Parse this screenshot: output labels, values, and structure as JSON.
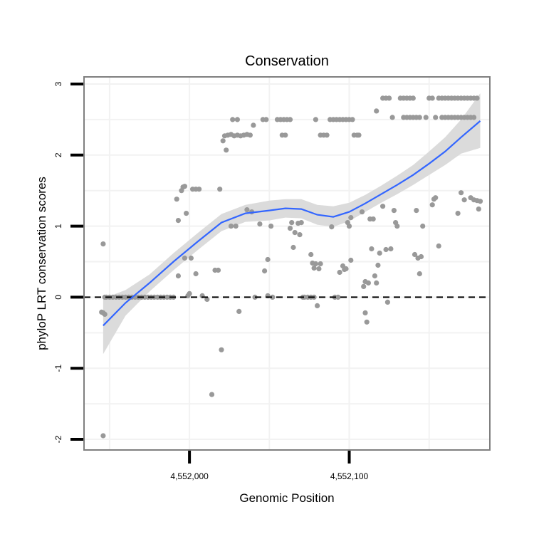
{
  "chart_data": {
    "type": "scatter",
    "title": "Conservation",
    "xlabel": "Genomic Position",
    "ylabel": "phyloP LRT conservation scores",
    "xlim": [
      4551934,
      4552188
    ],
    "ylim": [
      -2.15,
      3.1
    ],
    "x_ticks": [
      {
        "value": 4552000,
        "label": "4,552,000"
      },
      {
        "value": 4552100,
        "label": "4,552,100"
      }
    ],
    "y_ticks": [
      {
        "value": -2,
        "label": "-2"
      },
      {
        "value": -1,
        "label": "-1"
      },
      {
        "value": 0,
        "label": "0"
      },
      {
        "value": 1,
        "label": "1"
      },
      {
        "value": 2,
        "label": "2"
      },
      {
        "value": 3,
        "label": "3"
      }
    ],
    "grid": true,
    "reference_line": {
      "y": 0,
      "style": "dashed",
      "color": "#000000"
    },
    "colors": {
      "points": "#999999",
      "smooth_line": "#3366ff",
      "confidence_band": "#d9d9d9",
      "panel_border": "#7f7f7f",
      "grid": "#f2f2f2"
    },
    "points": [
      [
        4551946,
        -1.95
      ],
      [
        4551946,
        0.75
      ],
      [
        4551946,
        -0.22
      ],
      [
        4551947,
        -0.24
      ],
      [
        4551945,
        -0.21
      ],
      [
        4551947,
        0.0
      ],
      [
        4551948,
        0.0
      ],
      [
        4551950,
        0.0
      ],
      [
        4551952,
        0.0
      ],
      [
        4551954,
        0.0
      ],
      [
        4551956,
        0.0
      ],
      [
        4551958,
        0.0
      ],
      [
        4551960,
        0.0
      ],
      [
        4551962,
        0.0
      ],
      [
        4551964,
        0.0
      ],
      [
        4551966,
        0.0
      ],
      [
        4551968,
        0.0
      ],
      [
        4551970,
        0.0
      ],
      [
        4551972,
        0.0
      ],
      [
        4551974,
        0.0
      ],
      [
        4551976,
        0.0
      ],
      [
        4551978,
        0.0
      ],
      [
        4551980,
        0.0
      ],
      [
        4551982,
        0.0
      ],
      [
        4551984,
        0.0
      ],
      [
        4551986,
        0.0
      ],
      [
        4551988,
        0.0
      ],
      [
        4551990,
        0.0
      ],
      [
        4551992,
        1.38
      ],
      [
        4551993,
        1.08
      ],
      [
        4551993,
        0.3
      ],
      [
        4551995,
        1.5
      ],
      [
        4551996,
        1.55
      ],
      [
        4551997,
        1.56
      ],
      [
        4551997,
        0.55
      ],
      [
        4551998,
        1.18
      ],
      [
        4551999,
        0.02
      ],
      [
        4552000,
        0.05
      ],
      [
        4552001,
        0.55
      ],
      [
        4552002,
        1.52
      ],
      [
        4552004,
        1.52
      ],
      [
        4552006,
        1.52
      ],
      [
        4552004,
        0.33
      ],
      [
        4552008,
        0.02
      ],
      [
        4552011,
        -0.03
      ],
      [
        4552014,
        -1.37
      ],
      [
        4552016,
        0.38
      ],
      [
        4552018,
        0.38
      ],
      [
        4552019,
        1.52
      ],
      [
        4552020,
        -0.74
      ],
      [
        4552021,
        2.2
      ],
      [
        4552022,
        2.27
      ],
      [
        4552023,
        2.07
      ],
      [
        4552024,
        2.28
      ],
      [
        4552026,
        2.29
      ],
      [
        4552028,
        2.27
      ],
      [
        4552030,
        2.28
      ],
      [
        4552032,
        2.27
      ],
      [
        4552034,
        2.28
      ],
      [
        4552036,
        2.29
      ],
      [
        4552038,
        2.28
      ],
      [
        4552027,
        2.5
      ],
      [
        4552030,
        2.5
      ],
      [
        4552026,
        1.0
      ],
      [
        4552029,
        1.0
      ],
      [
        4552031,
        -0.2
      ],
      [
        4552036,
        1.23
      ],
      [
        4552039,
        1.2
      ],
      [
        4552040,
        2.42
      ],
      [
        4552041,
        0.0
      ],
      [
        4552044,
        1.03
      ],
      [
        4552046,
        2.5
      ],
      [
        4552048,
        2.5
      ],
      [
        4552047,
        0.37
      ],
      [
        4552049,
        0.53
      ],
      [
        4552049,
        0.02
      ],
      [
        4552051,
        1.0
      ],
      [
        4552052,
        0.0
      ],
      [
        4552055,
        2.5
      ],
      [
        4552057,
        2.5
      ],
      [
        4552059,
        2.5
      ],
      [
        4552061,
        2.5
      ],
      [
        4552063,
        2.5
      ],
      [
        4552058,
        2.28
      ],
      [
        4552060,
        2.28
      ],
      [
        4552063,
        0.97
      ],
      [
        4552064,
        1.05
      ],
      [
        4552065,
        0.7
      ],
      [
        4552066,
        0.91
      ],
      [
        4552068,
        1.04
      ],
      [
        4552069,
        0.88
      ],
      [
        4552070,
        1.05
      ],
      [
        4552071,
        0.0
      ],
      [
        4552072,
        0.0
      ],
      [
        4552074,
        0.0
      ],
      [
        4552076,
        0.0
      ],
      [
        4552078,
        0.0
      ],
      [
        4552076,
        0.6
      ],
      [
        4552077,
        0.48
      ],
      [
        4552078,
        0.41
      ],
      [
        4552079,
        0.47
      ],
      [
        4552080,
        -0.12
      ],
      [
        4552081,
        0.4
      ],
      [
        4552082,
        0.47
      ],
      [
        4552079,
        2.5
      ],
      [
        4552082,
        2.28
      ],
      [
        4552084,
        2.28
      ],
      [
        4552086,
        2.28
      ],
      [
        4552088,
        2.5
      ],
      [
        4552090,
        2.5
      ],
      [
        4552092,
        2.5
      ],
      [
        4552094,
        2.5
      ],
      [
        4552096,
        2.5
      ],
      [
        4552098,
        2.5
      ],
      [
        4552100,
        2.5
      ],
      [
        4552089,
        0.99
      ],
      [
        4552091,
        0.0
      ],
      [
        4552093,
        0.0
      ],
      [
        4552094,
        0.35
      ],
      [
        4552096,
        0.44
      ],
      [
        4552097,
        0.39
      ],
      [
        4552098,
        0.4
      ],
      [
        4552099,
        1.05
      ],
      [
        4552100,
        1.0
      ],
      [
        4552101,
        1.12
      ],
      [
        4552101,
        0.52
      ],
      [
        4552102,
        2.5
      ],
      [
        4552103,
        2.28
      ],
      [
        4552105,
        2.28
      ],
      [
        4552106,
        2.28
      ],
      [
        4552108,
        1.2
      ],
      [
        4552109,
        0.15
      ],
      [
        4552110,
        -0.22
      ],
      [
        4552110,
        0.22
      ],
      [
        4552111,
        -0.35
      ],
      [
        4552112,
        0.2
      ],
      [
        4552113,
        1.1
      ],
      [
        4552114,
        0.68
      ],
      [
        4552115,
        1.1
      ],
      [
        4552116,
        0.3
      ],
      [
        4552117,
        2.62
      ],
      [
        4552117,
        0.2
      ],
      [
        4552118,
        0.45
      ],
      [
        4552119,
        0.62
      ],
      [
        4552121,
        2.8
      ],
      [
        4552123,
        2.8
      ],
      [
        4552125,
        2.8
      ],
      [
        4552121,
        1.28
      ],
      [
        4552123,
        0.67
      ],
      [
        4552124,
        -0.07
      ],
      [
        4552126,
        0.68
      ],
      [
        4552127,
        2.53
      ],
      [
        4552128,
        1.22
      ],
      [
        4552129,
        1.05
      ],
      [
        4552130,
        1.0
      ],
      [
        4552132,
        2.8
      ],
      [
        4552134,
        2.8
      ],
      [
        4552136,
        2.8
      ],
      [
        4552138,
        2.8
      ],
      [
        4552140,
        2.8
      ],
      [
        4552134,
        2.53
      ],
      [
        4552136,
        2.53
      ],
      [
        4552138,
        2.53
      ],
      [
        4552140,
        2.53
      ],
      [
        4552142,
        2.53
      ],
      [
        4552144,
        2.53
      ],
      [
        4552141,
        0.6
      ],
      [
        4552142,
        1.22
      ],
      [
        4552143,
        0.55
      ],
      [
        4552144,
        0.33
      ],
      [
        4552145,
        0.57
      ],
      [
        4552146,
        1.0
      ],
      [
        4552148,
        2.53
      ],
      [
        4552150,
        2.8
      ],
      [
        4552152,
        2.8
      ],
      [
        4552154,
        2.53
      ],
      [
        4552156,
        2.8
      ],
      [
        4552158,
        2.8
      ],
      [
        4552160,
        2.8
      ],
      [
        4552162,
        2.8
      ],
      [
        4552164,
        2.8
      ],
      [
        4552166,
        2.8
      ],
      [
        4552168,
        2.8
      ],
      [
        4552170,
        2.8
      ],
      [
        4552172,
        2.8
      ],
      [
        4552174,
        2.8
      ],
      [
        4552176,
        2.8
      ],
      [
        4552178,
        2.8
      ],
      [
        4552180,
        2.8
      ],
      [
        4552158,
        2.53
      ],
      [
        4552160,
        2.53
      ],
      [
        4552162,
        2.53
      ],
      [
        4552164,
        2.53
      ],
      [
        4552166,
        2.53
      ],
      [
        4552168,
        2.53
      ],
      [
        4552170,
        2.53
      ],
      [
        4552172,
        2.53
      ],
      [
        4552174,
        2.53
      ],
      [
        4552176,
        2.53
      ],
      [
        4552178,
        2.53
      ],
      [
        4552152,
        1.3
      ],
      [
        4552153,
        1.38
      ],
      [
        4552154,
        1.4
      ],
      [
        4552156,
        0.72
      ],
      [
        4552168,
        1.18
      ],
      [
        4552170,
        1.47
      ],
      [
        4552172,
        1.37
      ],
      [
        4552176,
        1.4
      ],
      [
        4552178,
        1.37
      ],
      [
        4552180,
        1.36
      ],
      [
        4552181,
        1.24
      ],
      [
        4552182,
        1.35
      ]
    ],
    "smooth": {
      "x": [
        4551946,
        4551960,
        4551975,
        4551990,
        4552005,
        4552020,
        4552035,
        4552050,
        4552060,
        4552070,
        4552080,
        4552090,
        4552100,
        4552110,
        4552120,
        4552130,
        4552140,
        4552150,
        4552160,
        4552170,
        4552182
      ],
      "y": [
        -0.4,
        -0.08,
        0.2,
        0.5,
        0.78,
        1.05,
        1.18,
        1.22,
        1.25,
        1.24,
        1.16,
        1.13,
        1.2,
        1.32,
        1.45,
        1.58,
        1.72,
        1.88,
        2.05,
        2.25,
        2.48
      ],
      "lower": [
        -0.8,
        -0.26,
        0.08,
        0.38,
        0.66,
        0.93,
        1.06,
        1.08,
        1.12,
        1.11,
        1.02,
        0.99,
        1.07,
        1.2,
        1.33,
        1.45,
        1.58,
        1.72,
        1.86,
        2.02,
        2.1
      ],
      "upper": [
        -0.02,
        0.1,
        0.32,
        0.62,
        0.9,
        1.17,
        1.3,
        1.36,
        1.38,
        1.38,
        1.3,
        1.28,
        1.33,
        1.44,
        1.57,
        1.71,
        1.86,
        2.05,
        2.25,
        2.5,
        2.87
      ]
    }
  }
}
